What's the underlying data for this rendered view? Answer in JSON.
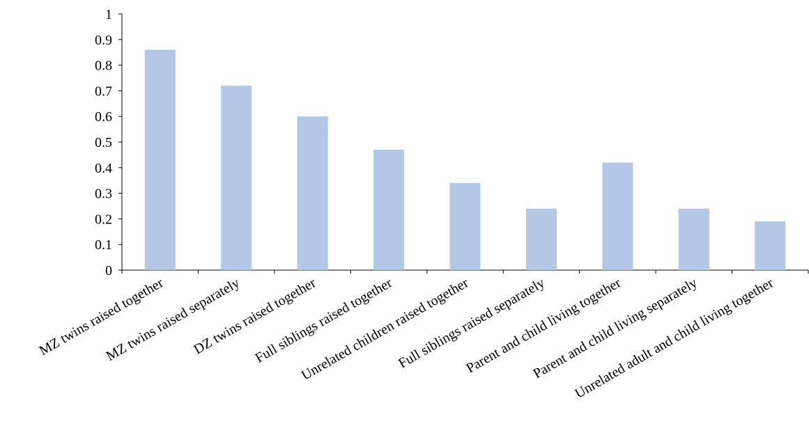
{
  "chart_data": {
    "type": "bar",
    "title": "",
    "xlabel": "",
    "ylabel": "",
    "categories": [
      "MZ twins raised together",
      "MZ twins raised separately",
      "DZ twins raised together",
      "Full siblings raised together",
      "Unrelated children raised together",
      "Full siblings raised separately",
      "Parent and child living together",
      "Parent and child living separately",
      "Unrelated adult and child living together"
    ],
    "values": [
      0.86,
      0.72,
      0.6,
      0.47,
      0.34,
      0.24,
      0.42,
      0.24,
      0.19
    ],
    "ylim": [
      0,
      1
    ],
    "yticks": [
      "0",
      "0.1",
      "0.2",
      "0.3",
      "0.4",
      "0.5",
      "0.6",
      "0.7",
      "0.8",
      "0.9",
      "1"
    ],
    "grid": false,
    "legend": "none",
    "bar_color": "#b4c7e7"
  }
}
